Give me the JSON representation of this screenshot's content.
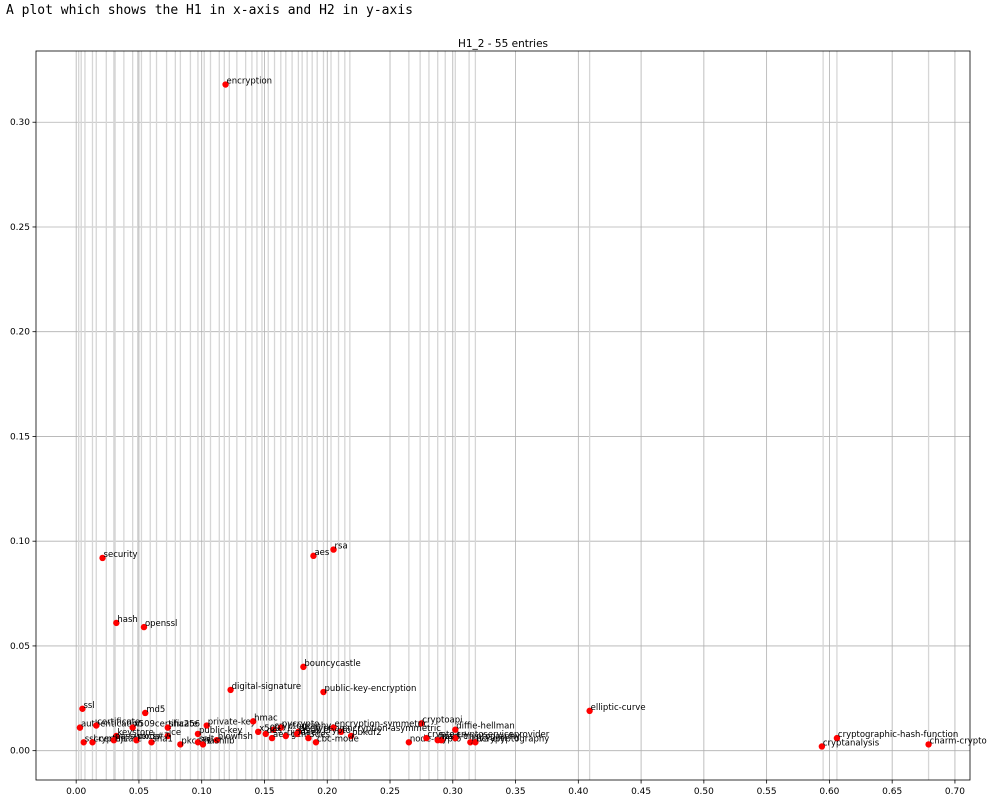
{
  "caption": "A plot which shows the H1 in x-axis and H2 in y-axis",
  "chart_data": {
    "type": "scatter",
    "title": "H1_2 - 55 entries",
    "xlabel": "",
    "ylabel": "",
    "xlim": [
      -0.032,
      0.712
    ],
    "ylim": [
      -0.014,
      0.334
    ],
    "xticks": [
      0.0,
      0.05,
      0.1,
      0.15,
      0.2,
      0.25,
      0.3,
      0.35,
      0.4,
      0.45,
      0.5,
      0.55,
      0.6,
      0.65,
      0.7
    ],
    "xtick_labels": [
      "0.00",
      "0.05",
      "0.10",
      "0.15",
      "0.20",
      "0.25",
      "0.30",
      "0.35",
      "0.40",
      "0.45",
      "0.50",
      "0.55",
      "0.60",
      "0.65",
      "0.70"
    ],
    "yticks": [
      0.0,
      0.05,
      0.1,
      0.15,
      0.2,
      0.25,
      0.3
    ],
    "ytick_labels": [
      "0.00",
      "0.05",
      "0.10",
      "0.15",
      "0.20",
      "0.25",
      "0.30"
    ],
    "grid": true,
    "marker_color": "#ff0000",
    "vertical_lines": [
      0.002,
      0.004,
      0.007,
      0.013,
      0.016,
      0.024,
      0.03,
      0.031,
      0.038,
      0.045,
      0.049,
      0.052,
      0.059,
      0.064,
      0.072,
      0.079,
      0.083,
      0.091,
      0.097,
      0.102,
      0.107,
      0.114,
      0.118,
      0.122,
      0.128,
      0.135,
      0.14,
      0.144,
      0.148,
      0.153,
      0.158,
      0.163,
      0.167,
      0.172,
      0.177,
      0.18,
      0.184,
      0.188,
      0.192,
      0.197,
      0.203,
      0.209,
      0.214,
      0.218,
      0.265,
      0.274,
      0.281,
      0.288,
      0.294,
      0.302,
      0.313,
      0.318,
      0.409,
      0.595,
      0.606,
      0.679
    ],
    "points": [
      {
        "label": "encryption",
        "x": 0.119,
        "y": 0.318
      },
      {
        "label": "rsa",
        "x": 0.205,
        "y": 0.096
      },
      {
        "label": "aes",
        "x": 0.189,
        "y": 0.093
      },
      {
        "label": "security",
        "x": 0.021,
        "y": 0.092
      },
      {
        "label": "hash",
        "x": 0.032,
        "y": 0.061
      },
      {
        "label": "openssl",
        "x": 0.054,
        "y": 0.059
      },
      {
        "label": "bouncycastle",
        "x": 0.181,
        "y": 0.04
      },
      {
        "label": "digital-signature",
        "x": 0.123,
        "y": 0.029
      },
      {
        "label": "public-key-encryption",
        "x": 0.197,
        "y": 0.028
      },
      {
        "label": "ssl",
        "x": 0.005,
        "y": 0.02
      },
      {
        "label": "md5",
        "x": 0.055,
        "y": 0.018
      },
      {
        "label": "elliptic-curve",
        "x": 0.409,
        "y": 0.019
      },
      {
        "label": "authentication",
        "x": 0.003,
        "y": 0.011
      },
      {
        "label": "certificate",
        "x": 0.016,
        "y": 0.012
      },
      {
        "label": "x509certificate",
        "x": 0.045,
        "y": 0.011
      },
      {
        "label": "sha256",
        "x": 0.073,
        "y": 0.011
      },
      {
        "label": "private-key",
        "x": 0.104,
        "y": 0.012
      },
      {
        "label": "hmac",
        "x": 0.141,
        "y": 0.014
      },
      {
        "label": "cryptoapi",
        "x": 0.275,
        "y": 0.013
      },
      {
        "label": "diffie-hellman",
        "x": 0.302,
        "y": 0.01
      },
      {
        "label": "keystore",
        "x": 0.032,
        "y": 0.007
      },
      {
        "label": "jce",
        "x": 0.073,
        "y": 0.007
      },
      {
        "label": "public-key",
        "x": 0.097,
        "y": 0.008
      },
      {
        "label": "cryptography",
        "x": 0.157,
        "y": 0.01
      },
      {
        "label": "pycrypto",
        "x": 0.163,
        "y": 0.011
      },
      {
        "label": "decryption",
        "x": 0.177,
        "y": 0.009
      },
      {
        "label": "encryption-symmetric",
        "x": 0.205,
        "y": 0.011
      },
      {
        "label": "encryption-asymmetric",
        "x": 0.211,
        "y": 0.009
      },
      {
        "label": "pbkdf2",
        "x": 0.219,
        "y": 0.007
      },
      {
        "label": "ssl-certificate",
        "x": 0.006,
        "y": 0.004
      },
      {
        "label": "cryptojs",
        "x": 0.013,
        "y": 0.004
      },
      {
        "label": "passwords",
        "x": 0.03,
        "y": 0.005
      },
      {
        "label": "pkcs#7",
        "x": 0.048,
        "y": 0.005
      },
      {
        "label": "sha1",
        "x": 0.06,
        "y": 0.004
      },
      {
        "label": "pkcs11",
        "x": 0.083,
        "y": 0.003
      },
      {
        "label": "salt",
        "x": 0.097,
        "y": 0.004
      },
      {
        "label": "blowfish",
        "x": 0.112,
        "y": 0.005
      },
      {
        "label": "hashlib",
        "x": 0.101,
        "y": 0.003
      },
      {
        "label": "x509",
        "x": 0.145,
        "y": 0.009
      },
      {
        "label": "aes-gcm",
        "x": 0.156,
        "y": 0.006
      },
      {
        "label": "rijndael",
        "x": 0.167,
        "y": 0.007
      },
      {
        "label": "javax.crypto",
        "x": 0.176,
        "y": 0.008
      },
      {
        "label": "3des",
        "x": 0.185,
        "y": 0.006
      },
      {
        "label": "cbc-mode",
        "x": 0.191,
        "y": 0.004
      },
      {
        "label": "node-crypto",
        "x": 0.265,
        "y": 0.004
      },
      {
        "label": "crypto++",
        "x": 0.279,
        "y": 0.006
      },
      {
        "label": "nacl-cryptography",
        "x": 0.291,
        "y": 0.005
      },
      {
        "label": "cryptoserviceprovider",
        "x": 0.302,
        "y": 0.006
      },
      {
        "label": "java-cryptography",
        "x": 0.314,
        "y": 0.004
      },
      {
        "label": "cryptographic-hash-function",
        "x": 0.606,
        "y": 0.006
      },
      {
        "label": "cryptanalysis",
        "x": 0.594,
        "y": 0.002
      },
      {
        "label": "charm-crypto",
        "x": 0.679,
        "y": 0.003
      },
      {
        "label": "fips",
        "x": 0.288,
        "y": 0.005
      },
      {
        "label": "bcrypt",
        "x": 0.318,
        "y": 0.004
      },
      {
        "label": "des",
        "x": 0.151,
        "y": 0.008
      }
    ]
  }
}
